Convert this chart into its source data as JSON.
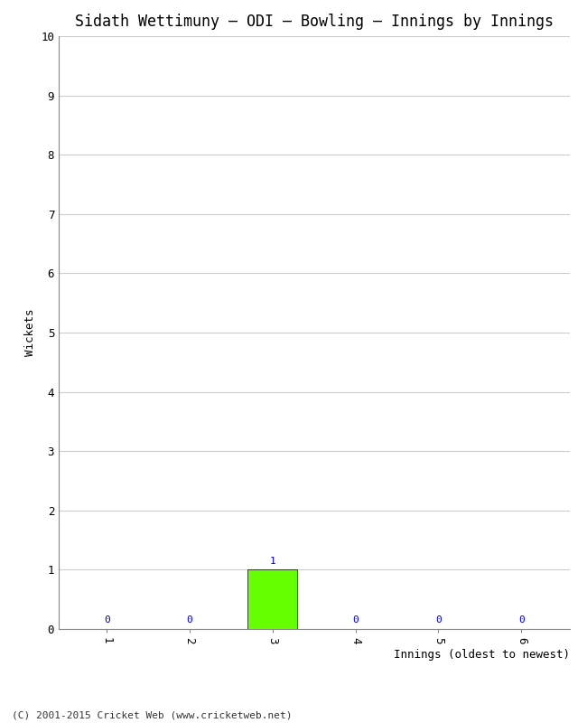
{
  "title": "Sidath Wettimuny – ODI – Bowling – Innings by Innings",
  "xlabel": "Innings (oldest to newest)",
  "ylabel": "Wickets",
  "categories": [
    1,
    2,
    3,
    4,
    5,
    6
  ],
  "values": [
    0,
    0,
    1,
    0,
    0,
    0
  ],
  "bar_color_green": "#66ff00",
  "ylim": [
    0,
    10
  ],
  "yticks": [
    0,
    1,
    2,
    3,
    4,
    5,
    6,
    7,
    8,
    9,
    10
  ],
  "background_color": "#ffffff",
  "grid_color": "#cccccc",
  "label_color": "#0000cc",
  "title_fontsize": 12,
  "axis_fontsize": 9,
  "tick_fontsize": 9,
  "label_fontsize": 8,
  "footer": "(C) 2001-2015 Cricket Web (www.cricketweb.net)"
}
